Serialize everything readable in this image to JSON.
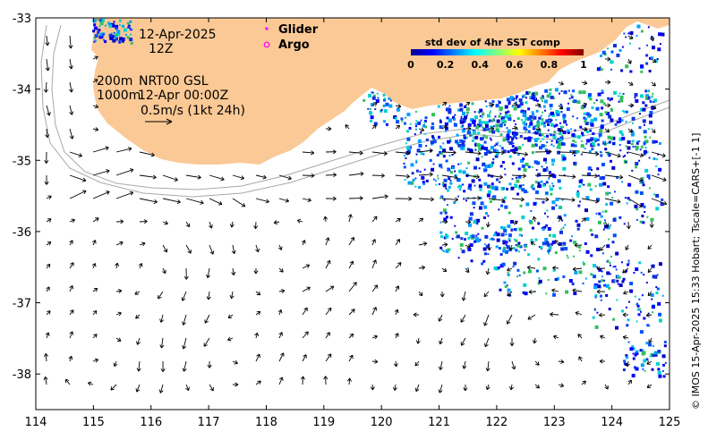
{
  "map": {
    "date": "12-Apr-2025",
    "hour": "12Z",
    "depth_shallow": "200m",
    "depth_deep": "1000m",
    "product": "NRT00 GSL",
    "velocity_time": "12-Apr 00:00Z",
    "scale_label": "0.5m/s (1kt 24h)",
    "credit": "© IMOS 15-Apr-2025 15:33 Hobart; Tscale=CARS+[-1 1]"
  },
  "legend": {
    "glider_label": "Glider",
    "argo_label": "Argo",
    "glider_color": "#ff00ff",
    "argo_color": "#ff00ff"
  },
  "colorbar": {
    "title": "std dev of 4hr SST comp",
    "ticks": [
      "0",
      "0.2",
      "0.4",
      "0.6",
      "0.8",
      "1"
    ],
    "range": [
      0,
      1
    ]
  },
  "axes": {
    "lon_min": 114,
    "lon_max": 125,
    "lat_min": -38.5,
    "lat_max": -33,
    "x_ticks": [
      "114",
      "115",
      "116",
      "117",
      "118",
      "119",
      "120",
      "121",
      "122",
      "123",
      "124",
      "125"
    ],
    "y_ticks": [
      "-33",
      "-34",
      "-35",
      "-36",
      "-37",
      "-38"
    ]
  },
  "colors": {
    "land": "#fbc995",
    "ocean": "#ffffff",
    "isobath": "#a8a8a8",
    "vector": "#000000"
  }
}
